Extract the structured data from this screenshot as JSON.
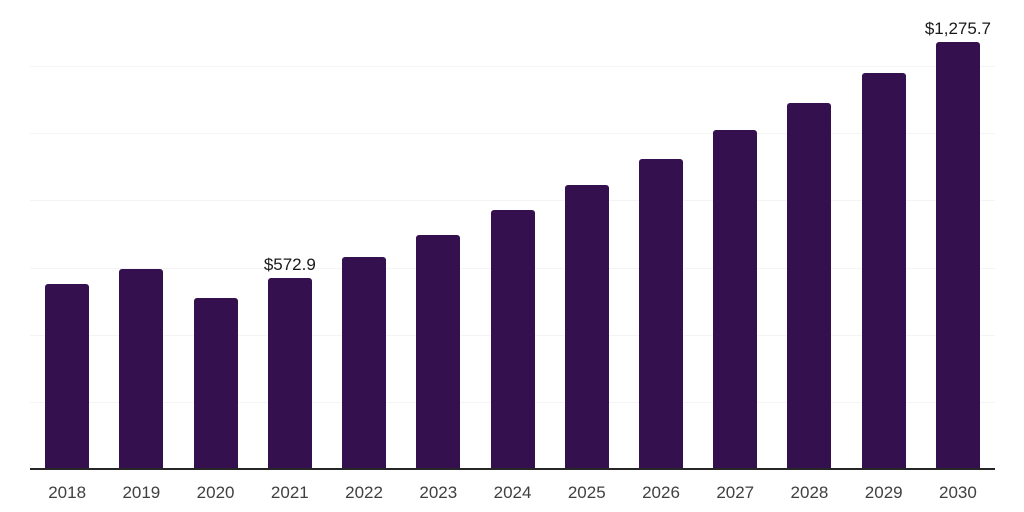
{
  "chart_data": {
    "type": "bar",
    "title": "",
    "xlabel": "",
    "ylabel": "",
    "categories": [
      "2018",
      "2019",
      "2020",
      "2021",
      "2022",
      "2023",
      "2024",
      "2025",
      "2026",
      "2027",
      "2028",
      "2029",
      "2030"
    ],
    "values": [
      555,
      599,
      513,
      572.9,
      635,
      701,
      775,
      850,
      927,
      1012,
      1093,
      1182,
      1275.7
    ],
    "data_labels": {
      "2021": "$572.9",
      "2030": "$1,275.7"
    },
    "ylim": [
      0,
      1400
    ],
    "grid": "horizontal",
    "gridline_interval": 200,
    "y_axis_tick_labels_visible": false,
    "legend": "none",
    "colors": {
      "bar": "#34104e",
      "gridline": "#f4f4f4",
      "axis_line": "#262626",
      "tick_label": "#404040",
      "data_label": "#1a1a1a",
      "background": "#ffffff"
    }
  }
}
